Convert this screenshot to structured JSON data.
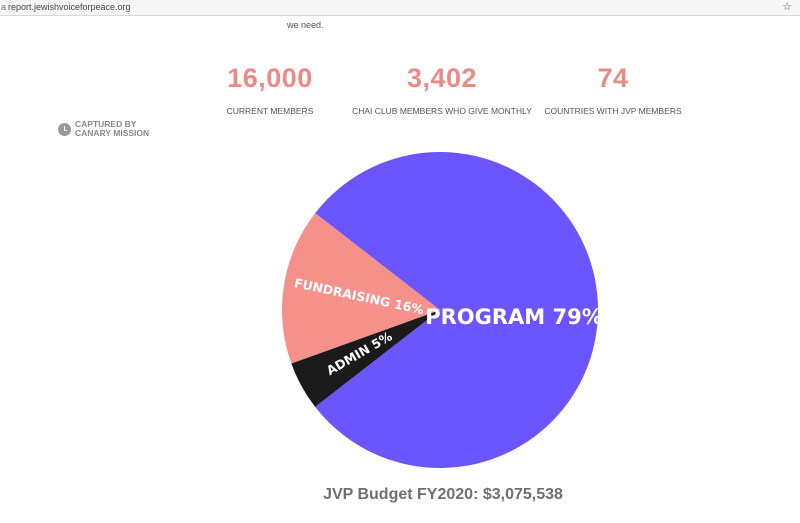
{
  "browser": {
    "lead_char": "a",
    "url": "report.jewishvoiceforpeace.org",
    "bookmark_icon": "star-icon"
  },
  "intro": {
    "text": "we need."
  },
  "stats": [
    {
      "value": "16,000",
      "label": "CURRENT MEMBERS"
    },
    {
      "value": "3,402",
      "label": "CHAI CLUB MEMBERS WHO GIVE MONTHLY"
    },
    {
      "value": "74",
      "label": "COUNTRIES WITH JVP MEMBERS"
    }
  ],
  "stamp": {
    "line1": "CAPTURED BY",
    "line2": "CANARY MISSION",
    "icon": "clock-icon"
  },
  "chart_data": {
    "type": "pie",
    "title": "JVP Budget FY2020: $3,075,538",
    "slices": [
      {
        "label": "PROGRAM 79%",
        "category": "Program",
        "value": 79,
        "color": "#6b55ff"
      },
      {
        "label": "ADMIN 5%",
        "category": "Admin",
        "value": 5,
        "color": "#1a1a1a"
      },
      {
        "label": "FUNDRAISING 16%",
        "category": "Fundraising",
        "value": 16,
        "color": "#f6908b"
      }
    ]
  },
  "colors": {
    "accent": "#ec8a85",
    "program": "#6b55ff",
    "fundraising": "#f6908b",
    "admin": "#1a1a1a"
  }
}
